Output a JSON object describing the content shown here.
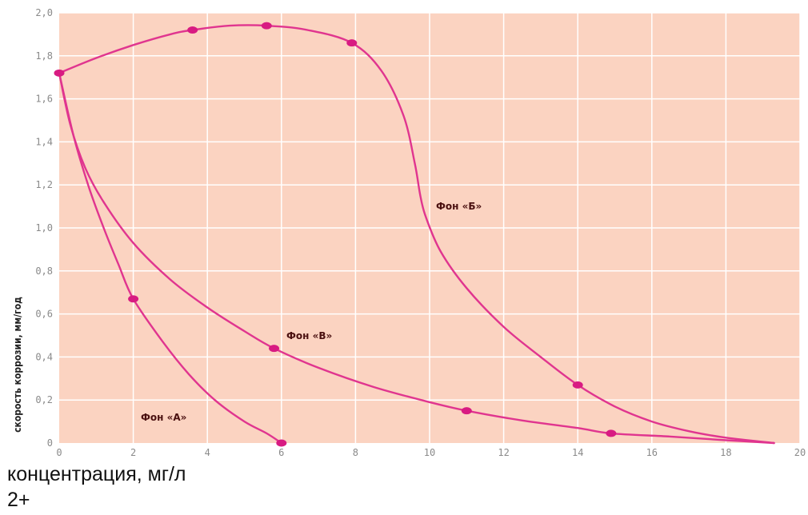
{
  "chart_data": {
    "type": "line",
    "title": "",
    "xlabel": "концентрация, мг/л",
    "xlabel_suffix": "2+",
    "ylabel": "скорость коррозии, мм/год",
    "xlim": [
      0,
      20
    ],
    "ylim": [
      0,
      2.0
    ],
    "x_ticks": [
      "0",
      "2",
      "4",
      "6",
      "8",
      "10",
      "12",
      "14",
      "16",
      "18",
      "20"
    ],
    "y_ticks": [
      "0",
      "0,2",
      "0,4",
      "0,6",
      "0,8",
      "1,0",
      "1,2",
      "1,4",
      "1,6",
      "1,8",
      "2,0"
    ],
    "grid": true,
    "colors": {
      "background": "#fbd3c1",
      "grid": "#ffffff",
      "line": "#e0358f",
      "marker": "#d81b82"
    },
    "series": [
      {
        "name": "Фон «Б»",
        "points": [
          [
            0,
            1.72
          ],
          [
            1,
            1.79
          ],
          [
            2,
            1.85
          ],
          [
            3,
            1.9
          ],
          [
            3.6,
            1.92
          ],
          [
            4.6,
            1.94
          ],
          [
            5.6,
            1.94
          ],
          [
            6.7,
            1.92
          ],
          [
            7.9,
            1.86
          ],
          [
            8.7,
            1.73
          ],
          [
            9.3,
            1.52
          ],
          [
            9.6,
            1.3
          ],
          [
            9.75,
            1.15
          ],
          [
            9.9,
            1.05
          ],
          [
            10.3,
            0.89
          ],
          [
            11,
            0.72
          ],
          [
            12,
            0.54
          ],
          [
            13,
            0.4
          ],
          [
            14,
            0.27
          ],
          [
            15,
            0.17
          ],
          [
            16,
            0.1
          ],
          [
            17,
            0.055
          ],
          [
            18,
            0.025
          ],
          [
            19.3,
            0
          ]
        ],
        "markers": [
          [
            0,
            1.72
          ],
          [
            3.6,
            1.92
          ],
          [
            5.6,
            1.94
          ],
          [
            7.9,
            1.86
          ],
          [
            14,
            0.27
          ]
        ]
      },
      {
        "name": "Фон «В»",
        "points": [
          [
            0,
            1.72
          ],
          [
            0.3,
            1.48
          ],
          [
            0.7,
            1.28
          ],
          [
            1.2,
            1.12
          ],
          [
            2,
            0.93
          ],
          [
            3,
            0.76
          ],
          [
            4,
            0.63
          ],
          [
            5,
            0.52
          ],
          [
            5.8,
            0.44
          ],
          [
            7,
            0.35
          ],
          [
            8.5,
            0.26
          ],
          [
            10,
            0.19
          ],
          [
            11,
            0.15
          ],
          [
            12.5,
            0.105
          ],
          [
            14,
            0.07
          ],
          [
            14.9,
            0.045
          ],
          [
            16.5,
            0.03
          ],
          [
            18,
            0.013
          ],
          [
            19.3,
            0
          ]
        ],
        "markers": [
          [
            5.8,
            0.44
          ],
          [
            11,
            0.15
          ],
          [
            14.9,
            0.045
          ]
        ]
      },
      {
        "name": "Фон «А»",
        "points": [
          [
            0,
            1.72
          ],
          [
            0.4,
            1.42
          ],
          [
            0.8,
            1.19
          ],
          [
            1.2,
            1.0
          ],
          [
            1.6,
            0.83
          ],
          [
            2,
            0.67
          ],
          [
            2.8,
            0.47
          ],
          [
            3.5,
            0.32
          ],
          [
            4.2,
            0.2
          ],
          [
            5,
            0.1
          ],
          [
            5.6,
            0.045
          ],
          [
            6,
            0
          ]
        ],
        "markers": [
          [
            2,
            0.67
          ],
          [
            6,
            0
          ]
        ]
      }
    ]
  }
}
